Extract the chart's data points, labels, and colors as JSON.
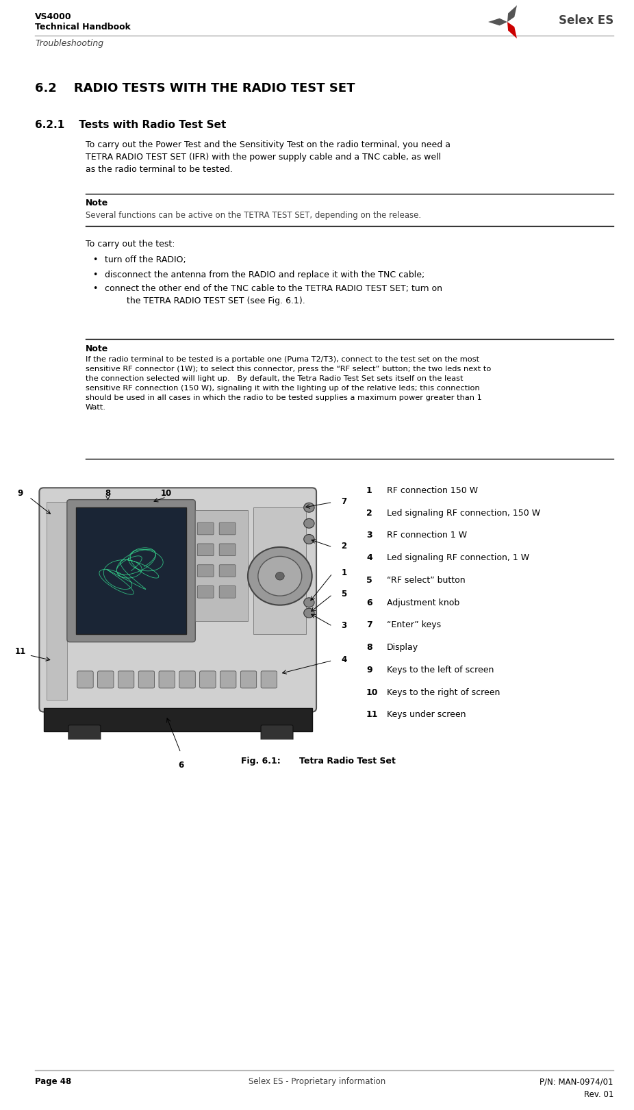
{
  "page_width": 9.26,
  "page_height": 16.21,
  "bg_color": "#ffffff",
  "header": {
    "vs4000": "VS4000",
    "handbook": "Technical Handbook",
    "section": "Troubleshooting",
    "logo_text": "Selex ES"
  },
  "section_title": "6.2    RADIO TESTS WITH THE RADIO TEST SET",
  "subsection_title": "6.2.1    Tests with Radio Test Set",
  "intro_text": "To carry out the Power Test and the Sensitivity Test on the radio terminal, you need a\nTETRA RADIO TEST SET (IFR) with the power supply cable and a TNC cable, as well\nas the radio terminal to be tested.",
  "note1_label": "Note",
  "note1_text": "Several functions can be active on the TETRA TEST SET, depending on the release.",
  "steps_intro": "To carry out the test:",
  "bullets": [
    "turn off the RADIO;",
    "disconnect the antenna from the RADIO and replace it with the TNC cable;",
    "connect the other end of the TNC cable to the TETRA RADIO TEST SET; turn on\n        the TETRA RADIO TEST SET (see Fig. 6.1)."
  ],
  "note2_label": "Note",
  "note2_text": "If the radio terminal to be tested is a portable one (Puma T2/T3), connect to the test set on the most\nsensitive RF connector (1W); to select this connector, press the “RF select” button; the two leds next to\nthe connection selected will light up.   By default, the Tetra Radio Test Set sets itself on the least\nsensitive RF connection (150 W), signaling it with the lighting up of the relative leds; this connection\nshould be used in all cases in which the radio to be tested supplies a maximum power greater than 1\nWatt.",
  "legend_items": [
    {
      "num": "1",
      "text": "RF connection 150 W"
    },
    {
      "num": "2",
      "text": "Led signaling RF connection, 150 W"
    },
    {
      "num": "3",
      "text": "RF connection 1 W"
    },
    {
      "num": "4",
      "text": "Led signaling RF connection, 1 W"
    },
    {
      "num": "5",
      "text": "“RF select” button"
    },
    {
      "num": "6",
      "text": "Adjustment knob"
    },
    {
      "num": "7",
      "text": "“Enter” keys"
    },
    {
      "num": "8",
      "text": "Display"
    },
    {
      "num": "9",
      "text": "Keys to the left of screen"
    },
    {
      "num": "10",
      "text": "Keys to the right of screen"
    },
    {
      "num": "11",
      "text": "Keys under screen"
    }
  ],
  "fig_caption_label": "Fig. 6.1:",
  "fig_caption_text": "Tetra Radio Test Set",
  "footer_left": "Page 48",
  "footer_center": "Selex ES - Proprietary information",
  "footer_right_1": "P/N: MAN-0974/01",
  "footer_right_2": "Rev. 01",
  "colors": {
    "black": "#000000",
    "dark_gray": "#404040",
    "mid_gray": "#808080",
    "light_gray": "#c0c0c0",
    "red": "#cc0000",
    "header_line": "#aaaaaa"
  }
}
